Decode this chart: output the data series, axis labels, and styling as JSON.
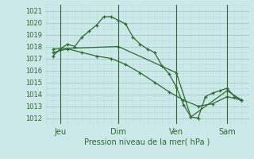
{
  "xlabel": "Pression niveau de la mer( hPa )",
  "bg_color": "#cce8e8",
  "grid_color_major": "#99cccc",
  "grid_color_minor": "#bbdddd",
  "line_color": "#2d6b2d",
  "ylim": [
    1011.5,
    1021.5
  ],
  "yticks": [
    1012,
    1013,
    1014,
    1015,
    1016,
    1017,
    1018,
    1019,
    1020,
    1021
  ],
  "xlim": [
    0,
    14
  ],
  "day_labels": [
    "Jeu",
    "Dim",
    "Ven",
    "Sam"
  ],
  "day_positions": [
    1,
    5,
    9,
    12.5
  ],
  "vline_positions": [
    1,
    5,
    9,
    12.5
  ],
  "line1_x": [
    0.5,
    1.0,
    1.5,
    2.0,
    2.5,
    3.0,
    3.5,
    4.0,
    4.5,
    5.0,
    5.5,
    6.0,
    6.5,
    7.0,
    7.5,
    8.0,
    8.5,
    9.0,
    9.5,
    10.0,
    10.5,
    11.0,
    11.5,
    12.0,
    12.5,
    13.0,
    13.5
  ],
  "line1_y": [
    1017.2,
    1017.8,
    1018.2,
    1018.0,
    1018.8,
    1019.3,
    1019.8,
    1020.5,
    1020.5,
    1020.2,
    1019.9,
    1018.8,
    1018.2,
    1017.8,
    1017.5,
    1016.4,
    1015.7,
    1014.6,
    1013.1,
    1012.1,
    1012.0,
    1013.8,
    1014.1,
    1014.3,
    1014.5,
    1013.8,
    1013.5
  ],
  "line2_x": [
    0.5,
    1.5,
    2.5,
    3.5,
    4.5,
    5.5,
    6.5,
    7.5,
    8.5,
    9.5,
    10.5,
    11.5,
    12.5,
    13.5
  ],
  "line2_y": [
    1017.5,
    1017.8,
    1017.5,
    1017.2,
    1017.0,
    1016.5,
    1015.8,
    1015.0,
    1014.2,
    1013.5,
    1013.0,
    1013.2,
    1013.8,
    1013.5
  ],
  "line3_x": [
    0.5,
    5.0,
    9.0,
    10.0,
    12.5,
    13.5
  ],
  "line3_y": [
    1017.8,
    1018.0,
    1015.8,
    1012.1,
    1014.3,
    1013.5
  ]
}
